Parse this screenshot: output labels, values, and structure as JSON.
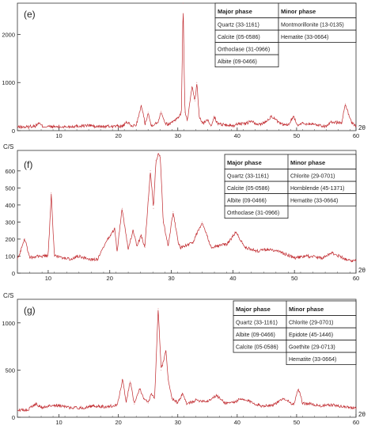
{
  "chart_data": [
    {
      "type": "line",
      "panel_label": "(e)",
      "ylabel": "",
      "xlabel": "2θ",
      "xlim": [
        3,
        60
      ],
      "ylim": [
        0,
        2650
      ],
      "xticks": [
        10,
        20,
        30,
        40,
        50,
        60
      ],
      "yticks": [
        0,
        1000,
        2000
      ],
      "grid": false,
      "line_color": "#c0282d",
      "baseline": 75,
      "series": [
        {
          "x": [
            5,
            6,
            6.6,
            7.2,
            9,
            11,
            13,
            15.5,
            16,
            17,
            19,
            20.8,
            21.5,
            22.2,
            23,
            23.9,
            24.5,
            25,
            25.5,
            26.6,
            27.2,
            27.9,
            28.5,
            29.4,
            30,
            30.6,
            30.9,
            31.2,
            31.6,
            32.4,
            32.9,
            33.2,
            33.6,
            34.1,
            35.1,
            35.6,
            36.1,
            36.6,
            37.2,
            38,
            39.5,
            40.3,
            41,
            42.5,
            43.2,
            44.5,
            45.8,
            47.2,
            48.5,
            49.5,
            50.1,
            51,
            52.5,
            54.9,
            56,
            57.6,
            58.2,
            59.2,
            60
          ],
          "y": [
            90,
            95,
            160,
            90,
            80,
            78,
            95,
            110,
            80,
            85,
            90,
            95,
            180,
            90,
            120,
            520,
            140,
            380,
            110,
            160,
            400,
            150,
            130,
            220,
            260,
            380,
            2650,
            380,
            200,
            900,
            620,
            1000,
            300,
            150,
            220,
            100,
            300,
            160,
            140,
            120,
            100,
            160,
            130,
            200,
            120,
            160,
            300,
            140,
            110,
            300,
            120,
            150,
            140,
            90,
            180,
            160,
            560,
            180,
            90
          ]
        }
      ],
      "legend_table": {
        "major_header": "Major phase",
        "minor_header": "Minor phase",
        "major": [
          "Quartz (33-1161)",
          "Calcite (05-0586)",
          "Orthoclase (31-0966)",
          "Albite (09-0466)"
        ],
        "minor": [
          "Montmorillonite (13-0135)",
          "Hematite (33-0664)"
        ]
      }
    },
    {
      "type": "line",
      "panel_label": "(f)",
      "ylabel": "C/S",
      "xlabel": "2θ",
      "xlim": [
        5,
        60
      ],
      "ylim": [
        0,
        720
      ],
      "xticks": [
        10,
        20,
        30,
        40,
        50,
        60
      ],
      "yticks": [
        0,
        100,
        200,
        300,
        400,
        500,
        600
      ],
      "grid": false,
      "line_color": "#c0282d",
      "baseline": 40,
      "series": [
        {
          "x": [
            5,
            6.2,
            7,
            8.5,
            10,
            10.5,
            11,
            13.8,
            14.8,
            17,
            18,
            19.7,
            20.8,
            21.2,
            22,
            23,
            23.8,
            24.4,
            25.1,
            25.7,
            26.6,
            27.1,
            27.5,
            27.9,
            28.2,
            28.7,
            29.5,
            30.3,
            31.1,
            31.5,
            33.5,
            35,
            36.5,
            37.5,
            39,
            40.5,
            42,
            44,
            46,
            48,
            50,
            52,
            54.5,
            56,
            58.5,
            60
          ],
          "y": [
            80,
            200,
            90,
            100,
            100,
            470,
            100,
            80,
            100,
            80,
            80,
            200,
            260,
            130,
            380,
            140,
            250,
            160,
            220,
            150,
            600,
            380,
            660,
            700,
            690,
            300,
            160,
            360,
            180,
            150,
            180,
            300,
            150,
            160,
            170,
            240,
            150,
            130,
            140,
            120,
            90,
            100,
            90,
            120,
            80,
            70
          ]
        }
      ],
      "legend_table": {
        "major_header": "Major phase",
        "minor_header": "Minor phase",
        "major": [
          "Quartz (33-1161)",
          "Calcite (05-0586)",
          "Albite (09-0466)",
          "Orthoclase (31-0966)"
        ],
        "minor": [
          "Chlorite (29-0701)",
          "Hornblende (45-1371)",
          "Hematite (33-0664)"
        ]
      }
    },
    {
      "type": "line",
      "panel_label": "(g)",
      "ylabel": "C/S",
      "xlabel": "2θ",
      "xlim": [
        3,
        60
      ],
      "ylim": [
        0,
        1250
      ],
      "xticks": [
        10,
        20,
        30,
        40,
        50,
        60
      ],
      "yticks": [
        0,
        500,
        1000
      ],
      "grid": false,
      "line_color": "#c0282d",
      "baseline": 80,
      "series": [
        {
          "x": [
            5,
            6.2,
            7,
            8,
            9,
            10.2,
            12,
            14,
            16,
            18,
            19.8,
            20.7,
            21.3,
            22,
            22.7,
            23.6,
            24.3,
            25,
            25.6,
            26.1,
            26.7,
            27.2,
            27.6,
            28,
            28.4,
            29,
            30,
            30.8,
            31.5,
            33,
            35,
            36.5,
            38,
            39.5,
            40.5,
            42,
            44,
            46,
            48,
            49.5,
            50.3,
            51,
            52.5,
            54,
            56,
            58,
            60
          ],
          "y": [
            100,
            140,
            100,
            110,
            130,
            120,
            100,
            100,
            120,
            110,
            130,
            400,
            160,
            380,
            140,
            300,
            200,
            150,
            250,
            200,
            1150,
            500,
            600,
            700,
            400,
            200,
            150,
            250,
            140,
            180,
            170,
            230,
            150,
            160,
            190,
            170,
            120,
            130,
            200,
            130,
            300,
            150,
            140,
            120,
            130,
            110,
            100
          ]
        }
      ],
      "legend_table": {
        "major_header": "Major phase",
        "minor_header": "Minor phase",
        "major": [
          "Quartz (33-1161)",
          "Albite (09-0466)",
          "Calcite (05-0586)"
        ],
        "minor": [
          "Chlorite (29-0701)",
          "Epidote (45-1446)",
          "Goethite (29-0713)",
          "Hematite (33-0664)"
        ]
      }
    }
  ]
}
